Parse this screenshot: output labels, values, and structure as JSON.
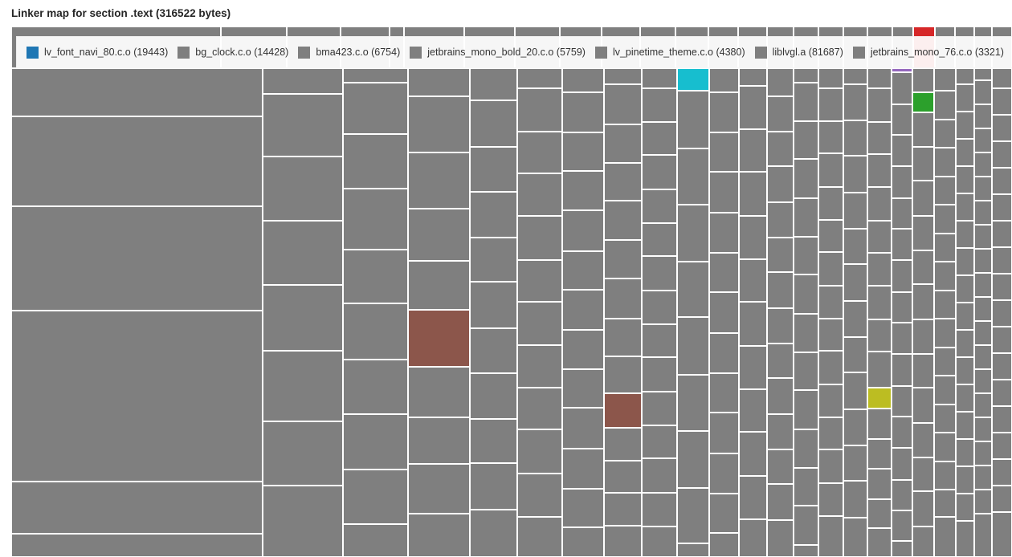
{
  "chart_data": {
    "type": "treemap",
    "title": "Linker map for section .text (316522 bytes)",
    "section": ".text",
    "total_bytes": 316522,
    "colors": {
      "default": "#7f7f7f",
      "blue": "#1f77b4",
      "red": "#d62728",
      "green": "#2ca02c",
      "purple": "#9467bd",
      "brown": "#8c564b",
      "yellow": "#bcbd22",
      "cyan": "#17becf"
    },
    "legend": [
      {
        "label": "lv_font_navi_80.c.o (19443)",
        "color": "#1f77b4"
      },
      {
        "label": "bg_clock.c.o (14428)",
        "color": "#7f7f7f"
      },
      {
        "label": "bma423.c.o (6754)",
        "color": "#7f7f7f"
      },
      {
        "label": "jetbrains_mono_bold_20.c.o (5759)",
        "color": "#7f7f7f"
      },
      {
        "label": "lv_pinetime_theme.c.o (4380)",
        "color": "#7f7f7f"
      },
      {
        "label": "liblvgl.a (81687)",
        "color": "#7f7f7f"
      },
      {
        "label": "jetbrains_mono_76.c.o (3321)",
        "color": "#7f7f7f"
      },
      {
        "label": "",
        "color": "#7f7f7f"
      }
    ],
    "layout": {
      "legend_position": "top-overlay",
      "gap_color": "#ffffff",
      "top_row_height_frac": 0.0787
    },
    "top_row": [
      4860,
      1520,
      1240,
      1140,
      340,
      1400,
      1160,
      1040,
      980,
      880,
      820,
      760,
      700,
      660,
      620,
      580,
      580,
      560,
      560,
      500,
      {
        "s": 500,
        "c": "red"
      },
      460,
      440,
      420,
      460
    ],
    "columns": [
      [
        6780,
        12650,
        14690,
        24070,
        7345,
        3280
      ],
      [
        1156,
        2817,
        2890,
        2890,
        2962,
        3179,
        2890,
        3215
      ],
      [
        526,
        1869,
        1986,
        2219,
        1956,
        2044,
        1986,
        2015,
        1986,
        1197
      ],
      [
        968,
        1937,
        1937,
        1798,
        1688,
        {
          "s": 1964,
          "c": "brown"
        },
        1743,
        1605,
        1715,
        1494
      ],
      [
        861,
        1248,
        1205,
        1227,
        1184,
        1248,
        1205,
        1227,
        1184,
        1248,
        1270
      ],
      [
        500,
        1079,
        1039,
        1059,
        1099,
        1039,
        1079,
        1059,
        1039,
        1099,
        1079,
        999
      ],
      [
        565,
        942,
        904,
        923,
        960,
        904,
        942,
        923,
        904,
        960,
        942,
        904,
        697
      ],
      [
        338,
        846,
        812,
        795,
        829,
        812,
        846,
        795,
        778,
        {
          "s": 727,
          "c": "brown"
        },
        693,
        676,
        693,
        660
      ],
      [
        394,
        662,
        646,
        678,
        662,
        646,
        678,
        662,
        646,
        678,
        662,
        646,
        678,
        662,
        599
      ],
      [
        {
          "s": 409,
          "c": "cyan"
        },
        1051,
        1022,
        1037,
        1008,
        1051,
        1022,
        1037,
        1008,
        248
      ],
      [
        404,
        673,
        659,
        686,
        673,
        659,
        686,
        673,
        659,
        686,
        673,
        659,
        404
      ],
      [
        279,
        685,
        672,
        697,
        685,
        672,
        697,
        685,
        672,
        697,
        685,
        596
      ],
      [
        417,
        524,
        512,
        536,
        524,
        512,
        536,
        524,
        512,
        536,
        524,
        512,
        536,
        548
      ],
      [
        201,
        535,
        524,
        546,
        535,
        524,
        546,
        535,
        524,
        546,
        535,
        524,
        546,
        167
      ],
      [
        279,
        457,
        446,
        468,
        457,
        446,
        468,
        457,
        446,
        468,
        457,
        446,
        468,
        457,
        568
      ],
      [
        215,
        484,
        473,
        495,
        484,
        473,
        495,
        484,
        473,
        495,
        484,
        473,
        495,
        527
      ],
      [
        269,
        452,
        430,
        441,
        452,
        430,
        441,
        452,
        430,
        484,
        {
          "s": 280,
          "c": "yellow"
        },
        409,
        398,
        409,
        387,
        387
      ],
      [
        {
          "s": 48,
          "c": "purple"
        },
        384,
        365,
        375,
        384,
        365,
        375,
        384,
        365,
        375,
        384,
        365,
        375,
        384,
        365,
        365,
        192
      ],
      [
        288,
        {
          "s": 240,
          "c": "green"
        },
        413,
        404,
        423,
        413,
        404,
        423,
        413,
        404,
        423,
        413,
        404,
        423,
        365
      ],
      [
        269,
        346,
        336,
        346,
        336,
        346,
        336,
        346,
        336,
        346,
        336,
        346,
        336,
        346,
        336,
        327,
        481
      ],
      [
        169,
        287,
        287,
        287,
        287,
        287,
        287,
        287,
        287,
        287,
        287,
        287,
        287,
        287,
        287,
        287,
        287,
        380
      ],
      [
        121,
        242,
        242,
        242,
        242,
        242,
        242,
        242,
        242,
        242,
        242,
        242,
        242,
        242,
        242,
        242,
        242,
        242,
        242,
        436
      ],
      [
        221,
        292,
        292,
        292,
        292,
        292,
        292,
        292,
        292,
        292,
        292,
        292,
        292,
        292,
        292,
        292,
        292,
        495
      ]
    ]
  }
}
